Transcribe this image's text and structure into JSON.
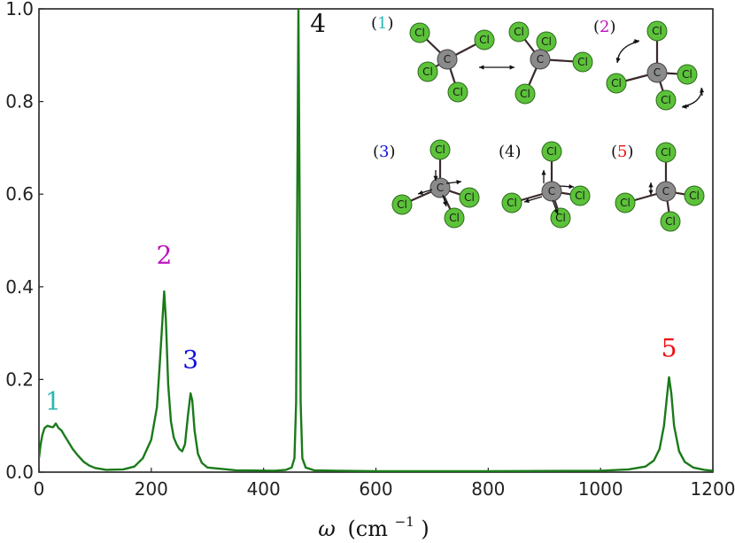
{
  "chart_data": {
    "type": "line",
    "xlabel_symbol": "ω",
    "xlabel_unit": "(cm",
    "xlabel_exp": "−1",
    "xlabel_close": ")",
    "ylabel": "",
    "xlim": [
      0,
      1200
    ],
    "ylim": [
      0.0,
      1.0
    ],
    "xticks": [
      0,
      200,
      400,
      600,
      800,
      1000,
      1200
    ],
    "xtick_labels": [
      "0",
      "200",
      "400",
      "600",
      "800",
      "1000",
      "1200"
    ],
    "yticks": [
      0.0,
      0.2,
      0.4,
      0.6,
      0.8,
      1.0
    ],
    "ytick_labels": [
      "0.0",
      "0.2",
      "0.4",
      "0.6",
      "0.8",
      "1.0"
    ],
    "grid": false,
    "series": [
      {
        "color": "#1a7a1a",
        "points": [
          [
            0,
            0.03
          ],
          [
            3,
            0.06
          ],
          [
            6,
            0.08
          ],
          [
            10,
            0.095
          ],
          [
            15,
            0.1
          ],
          [
            20,
            0.098
          ],
          [
            25,
            0.097
          ],
          [
            30,
            0.105
          ],
          [
            35,
            0.095
          ],
          [
            40,
            0.09
          ],
          [
            45,
            0.08
          ],
          [
            50,
            0.07
          ],
          [
            55,
            0.06
          ],
          [
            60,
            0.05
          ],
          [
            70,
            0.035
          ],
          [
            80,
            0.022
          ],
          [
            90,
            0.014
          ],
          [
            100,
            0.009
          ],
          [
            120,
            0.005
          ],
          [
            150,
            0.006
          ],
          [
            170,
            0.012
          ],
          [
            185,
            0.03
          ],
          [
            200,
            0.07
          ],
          [
            210,
            0.14
          ],
          [
            215,
            0.23
          ],
          [
            220,
            0.33
          ],
          [
            223,
            0.39
          ],
          [
            226,
            0.33
          ],
          [
            230,
            0.19
          ],
          [
            235,
            0.11
          ],
          [
            240,
            0.075
          ],
          [
            245,
            0.06
          ],
          [
            250,
            0.05
          ],
          [
            255,
            0.045
          ],
          [
            260,
            0.06
          ],
          [
            265,
            0.12
          ],
          [
            270,
            0.17
          ],
          [
            273,
            0.155
          ],
          [
            277,
            0.09
          ],
          [
            283,
            0.04
          ],
          [
            290,
            0.02
          ],
          [
            300,
            0.01
          ],
          [
            350,
            0.004
          ],
          [
            420,
            0.003
          ],
          [
            440,
            0.005
          ],
          [
            450,
            0.01
          ],
          [
            455,
            0.03
          ],
          [
            458,
            0.15
          ],
          [
            460,
            0.6
          ],
          [
            462,
            1.0
          ],
          [
            464,
            0.6
          ],
          [
            466,
            0.15
          ],
          [
            469,
            0.03
          ],
          [
            475,
            0.01
          ],
          [
            490,
            0.004
          ],
          [
            530,
            0.003
          ],
          [
            600,
            0.002
          ],
          [
            800,
            0.002
          ],
          [
            1000,
            0.003
          ],
          [
            1050,
            0.006
          ],
          [
            1080,
            0.012
          ],
          [
            1095,
            0.025
          ],
          [
            1105,
            0.05
          ],
          [
            1113,
            0.1
          ],
          [
            1118,
            0.16
          ],
          [
            1122,
            0.205
          ],
          [
            1126,
            0.17
          ],
          [
            1131,
            0.1
          ],
          [
            1140,
            0.045
          ],
          [
            1150,
            0.022
          ],
          [
            1165,
            0.01
          ],
          [
            1185,
            0.005
          ],
          [
            1200,
            0.003
          ]
        ]
      }
    ],
    "peak_labels": [
      {
        "text": "1",
        "x": 25,
        "y": 0.135,
        "color": "#2ab7b7"
      },
      {
        "text": "2",
        "x": 223,
        "y": 0.45,
        "color": "#bb10bb"
      },
      {
        "text": "3",
        "x": 270,
        "y": 0.225,
        "color": "#1111dd"
      },
      {
        "text": "4",
        "x": 497,
        "y": 0.95,
        "color": "#111111"
      },
      {
        "text": "5",
        "x": 1122,
        "y": 0.25,
        "color": "#ee1111"
      }
    ]
  },
  "inset": {
    "panels": [
      {
        "open": "(",
        "num": "1",
        "close": ")",
        "color": "#2ab7b7"
      },
      {
        "open": "(",
        "num": "2",
        "close": ")",
        "color": "#bb10bb"
      },
      {
        "open": "(",
        "num": "3",
        "close": ")",
        "color": "#1111dd"
      },
      {
        "open": "(",
        "num": "4",
        "close": ")",
        "color": "#111111"
      },
      {
        "open": "(",
        "num": "5",
        "close": ")",
        "color": "#ee1111"
      }
    ],
    "carbon_label": "C",
    "chlorine_label": "Cl",
    "carbon_color": "#8a8a8a",
    "chlorine_color": "#5cc23a"
  }
}
